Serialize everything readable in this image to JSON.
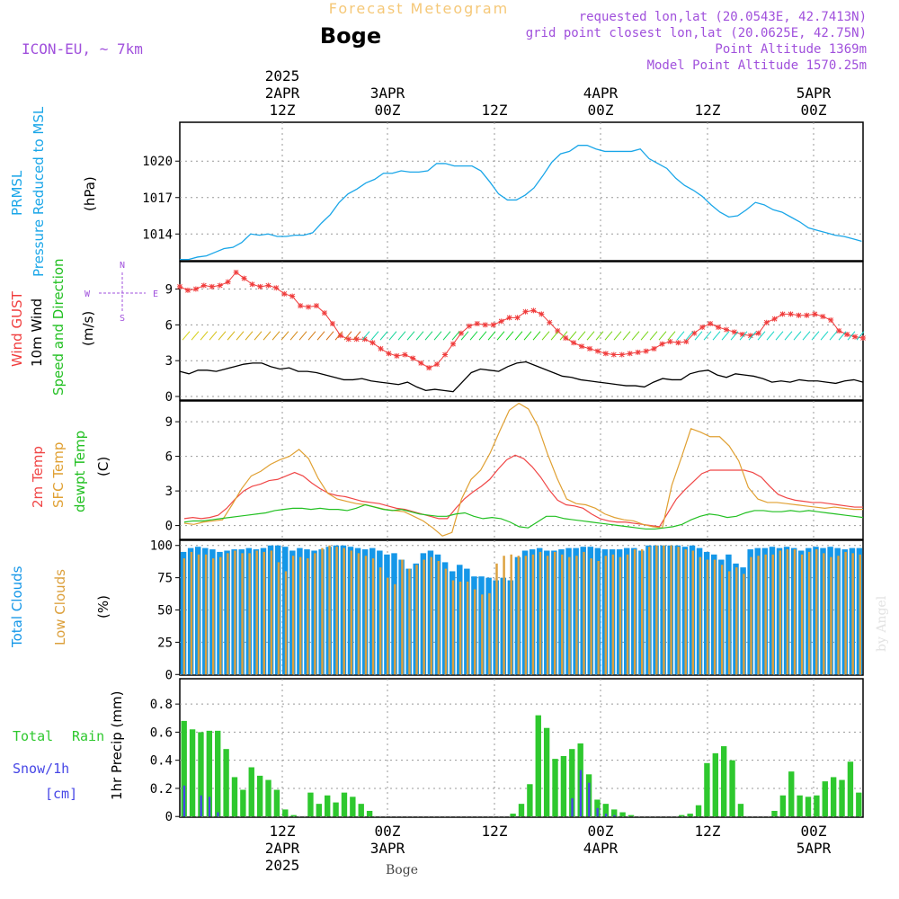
{
  "header": {
    "product": "Forecast Meteogram",
    "location": "Boge",
    "model": "ICON-EU, ~ 7km",
    "requested": "requested lon,lat (20.0543E, 42.7413N)",
    "gridpoint": "grid point closest lon,lat (20.0625E, 42.75N)",
    "point_alt": "Point Altitude 1369m",
    "model_alt": "Model Point Altitude 1570.25m"
  },
  "top_axis": {
    "labels": [
      {
        "lines": [
          "2025",
          "2APR",
          "12Z"
        ]
      },
      {
        "lines": [
          "3APR",
          "00Z"
        ]
      },
      {
        "lines": [
          "12Z"
        ]
      },
      {
        "lines": [
          "4APR",
          "00Z"
        ]
      },
      {
        "lines": [
          "12Z"
        ]
      },
      {
        "lines": [
          "5APR",
          "00Z"
        ]
      }
    ]
  },
  "bottom_axis": {
    "labels": [
      {
        "lines": [
          "12Z",
          "2APR",
          "2025"
        ]
      },
      {
        "lines": [
          "00Z",
          "3APR"
        ]
      },
      {
        "lines": [
          "12Z"
        ]
      },
      {
        "lines": [
          "00Z",
          "4APR"
        ]
      },
      {
        "lines": [
          "12Z"
        ]
      },
      {
        "lines": [
          "00Z",
          "5APR"
        ]
      }
    ],
    "footer": "Boge"
  },
  "watermark": "by Angel",
  "panel_labels": {
    "pressure": {
      "l1": "PRMSL",
      "l2": "Pressure Reduced to MSL",
      "unit": "(hPa)"
    },
    "wind": {
      "l1": "Wind GUST",
      "l2": "10m Wind",
      "l3": "Speed and Direction",
      "unit": "(m/s)",
      "compass": {
        "n": "N",
        "s": "S",
        "w": "W",
        "e": "E"
      }
    },
    "temp": {
      "l1": "2m Temp",
      "l2": "SFC Temp",
      "l3": "dewpt Temp",
      "unit": "(C)"
    },
    "clouds": {
      "l1": "Total Clouds",
      "l2": "Low Clouds",
      "unit": "(%)"
    },
    "precip": {
      "l1": "Total",
      "l1b": "Rain",
      "l2": "Snow/1h",
      "l3": "[cm]",
      "unit": "1hr Precip (mm)"
    }
  },
  "colors": {
    "pressure": "#1aa6e8",
    "gust": "#f03c3c",
    "wind": "#000000",
    "t2m": "#f04646",
    "sfc": "#e0a032",
    "dewpt": "#22c022",
    "total_cloud": "#1597e8",
    "low_cloud": "#dca03c",
    "rain": "#2ec82e",
    "snow": "#4646e6",
    "label_purple": "#a050dc",
    "label_orange": "#f5c878"
  },
  "chart_data": [
    {
      "type": "line",
      "name": "pressure",
      "x_hours": [
        0,
        1,
        2,
        3,
        4,
        5,
        6,
        7,
        8,
        9,
        10,
        11,
        12,
        13,
        14,
        15,
        16,
        17,
        18,
        19,
        20,
        21,
        22,
        23,
        24,
        25,
        26,
        27,
        28,
        29,
        30,
        31,
        32,
        33,
        34,
        35,
        36,
        37,
        38,
        39,
        40,
        41,
        42,
        43,
        44,
        45,
        46,
        47,
        48,
        49,
        50,
        51,
        52,
        53,
        54,
        55,
        56,
        57,
        58,
        59,
        60,
        61,
        62,
        63,
        64,
        65,
        66,
        67,
        68,
        69,
        70,
        71,
        72,
        73,
        74,
        75,
        76,
        77
      ],
      "y_ticks": [
        1014,
        1017,
        1020
      ],
      "ylim": [
        1011.8,
        1023.2
      ],
      "series": [
        {
          "values": [
            1011.9,
            1011.9,
            1012.1,
            1012.2,
            1012.5,
            1012.8,
            1012.9,
            1013.3,
            1014.0,
            1013.9,
            1014.0,
            1013.8,
            1013.8,
            1013.9,
            1013.9,
            1014.1,
            1014.9,
            1015.6,
            1016.6,
            1017.3,
            1017.7,
            1018.2,
            1018.5,
            1019.0,
            1019.0,
            1019.2,
            1019.1,
            1019.1,
            1019.2,
            1019.8,
            1019.8,
            1019.6,
            1019.6,
            1019.6,
            1019.2,
            1018.3,
            1017.3,
            1016.8,
            1016.8,
            1017.2,
            1017.8,
            1018.8,
            1019.9,
            1020.6,
            1020.8,
            1021.3,
            1021.3,
            1021.0,
            1020.8,
            1020.8,
            1020.8,
            1020.8,
            1021.0,
            1020.2,
            1019.8,
            1019.4,
            1018.6,
            1018.0,
            1017.6,
            1017.1,
            1016.4,
            1015.8,
            1015.4,
            1015.5,
            1016.0,
            1016.6,
            1016.4,
            1016.0,
            1015.8,
            1015.4,
            1015.0,
            1014.5,
            1014.3,
            1014.1,
            1013.9,
            1013.8,
            1013.6,
            1013.4
          ]
        }
      ]
    },
    {
      "type": "line",
      "name": "wind",
      "y_ticks": [
        0,
        3,
        6,
        9
      ],
      "ylim": [
        -0.3,
        11.3
      ],
      "series": [
        {
          "name": "Wind GUST",
          "values": [
            9.2,
            8.9,
            9.0,
            9.3,
            9.2,
            9.3,
            9.6,
            10.4,
            9.9,
            9.4,
            9.2,
            9.3,
            9.1,
            8.6,
            8.4,
            7.6,
            7.5,
            7.6,
            7.0,
            6.1,
            5.1,
            4.8,
            4.8,
            4.8,
            4.5,
            4.0,
            3.6,
            3.4,
            3.5,
            3.2,
            2.8,
            2.4,
            2.7,
            3.5,
            4.4,
            5.3,
            5.9,
            6.1,
            6.0,
            6.0,
            6.3,
            6.6,
            6.6,
            7.1,
            7.2,
            6.9,
            6.2,
            5.5,
            4.9,
            4.5,
            4.2,
            4.0,
            3.8,
            3.6,
            3.5,
            3.5,
            3.6,
            3.7,
            3.8,
            4.0,
            4.4,
            4.6,
            4.5,
            4.6,
            5.3,
            5.8,
            6.1,
            5.8,
            5.6,
            5.4,
            5.2,
            5.1,
            5.3,
            6.2,
            6.5,
            6.9,
            6.9,
            6.8,
            6.8,
            6.9,
            6.7,
            6.4,
            5.5,
            5.2,
            5.0,
            4.9
          ]
        },
        {
          "name": "10m Wind",
          "values": [
            2.1,
            1.9,
            2.2,
            2.2,
            2.1,
            2.3,
            2.5,
            2.7,
            2.8,
            2.8,
            2.5,
            2.3,
            2.4,
            2.1,
            2.1,
            2.0,
            1.8,
            1.6,
            1.4,
            1.4,
            1.5,
            1.3,
            1.2,
            1.1,
            1.0,
            1.2,
            0.8,
            0.5,
            0.6,
            0.5,
            0.4,
            1.2,
            2.0,
            2.3,
            2.2,
            2.1,
            2.5,
            2.8,
            2.9,
            2.6,
            2.3,
            2.0,
            1.7,
            1.6,
            1.4,
            1.3,
            1.2,
            1.1,
            1.0,
            0.9,
            0.9,
            0.8,
            1.2,
            1.5,
            1.4,
            1.4,
            1.9,
            2.1,
            2.2,
            1.8,
            1.6,
            1.9,
            1.8,
            1.7,
            1.5,
            1.2,
            1.3,
            1.2,
            1.4,
            1.3,
            1.3,
            1.2,
            1.1,
            1.3,
            1.4,
            1.2
          ]
        }
      ]
    },
    {
      "type": "line",
      "name": "temperature",
      "y_ticks": [
        0,
        3,
        6,
        9
      ],
      "ylim": [
        -1.2,
        10.8
      ],
      "series": [
        {
          "name": "2m Temp",
          "values": [
            0.6,
            0.7,
            0.6,
            0.7,
            0.9,
            1.5,
            2.3,
            3.0,
            3.4,
            3.6,
            3.9,
            4.0,
            4.3,
            4.6,
            4.3,
            3.7,
            3.2,
            2.8,
            2.6,
            2.5,
            2.3,
            2.1,
            2.0,
            1.9,
            1.7,
            1.5,
            1.4,
            1.2,
            1.0,
            0.8,
            0.6,
            0.6,
            1.5,
            2.3,
            2.9,
            3.4,
            4.0,
            4.9,
            5.7,
            6.1,
            5.8,
            5.1,
            4.2,
            3.1,
            2.2,
            1.8,
            1.7,
            1.5,
            1.0,
            0.6,
            0.4,
            0.3,
            0.3,
            0.2,
            0.1,
            0.0,
            -0.1,
            1.1,
            2.3,
            3.1,
            3.8,
            4.5,
            4.8,
            4.8,
            4.8,
            4.8,
            4.8,
            4.6,
            4.2,
            3.4,
            2.7,
            2.4,
            2.2,
            2.1,
            2.0,
            2.0,
            1.9,
            1.8,
            1.7,
            1.6,
            1.6
          ]
        },
        {
          "name": "SFC Temp",
          "values": [
            0.2,
            0.1,
            0.3,
            0.4,
            0.5,
            1.8,
            3.2,
            4.3,
            4.7,
            5.3,
            5.7,
            6.0,
            6.6,
            5.8,
            4.1,
            2.8,
            2.3,
            2.1,
            1.9,
            1.8,
            1.6,
            1.4,
            1.3,
            1.2,
            0.8,
            0.4,
            -0.2,
            -0.9,
            -0.6,
            2.3,
            4.0,
            4.8,
            6.3,
            8.2,
            10.0,
            10.6,
            10.1,
            8.6,
            6.2,
            4.1,
            2.3,
            1.9,
            1.8,
            1.5,
            1.0,
            0.7,
            0.5,
            0.4,
            0.1,
            -0.1,
            -0.2,
            3.5,
            5.9,
            8.4,
            8.1,
            7.7,
            7.7,
            6.9,
            5.6,
            3.3,
            2.3,
            2.0,
            2.0,
            1.9,
            1.8,
            1.7,
            1.6,
            1.5,
            1.6,
            1.5,
            1.4,
            1.4
          ]
        },
        {
          "name": "dewpt Temp",
          "values": [
            0.3,
            0.4,
            0.4,
            0.5,
            0.6,
            0.7,
            0.8,
            0.9,
            1.0,
            1.1,
            1.3,
            1.4,
            1.5,
            1.5,
            1.4,
            1.5,
            1.4,
            1.4,
            1.3,
            1.5,
            1.8,
            1.6,
            1.4,
            1.3,
            1.4,
            1.2,
            1.0,
            0.9,
            0.8,
            0.8,
            1.0,
            1.1,
            0.8,
            0.6,
            0.7,
            0.6,
            0.3,
            -0.1,
            -0.2,
            0.3,
            0.8,
            0.8,
            0.6,
            0.5,
            0.4,
            0.3,
            0.2,
            0.1,
            0.0,
            -0.1,
            -0.2,
            -0.3,
            -0.3,
            -0.2,
            -0.1,
            0.1,
            0.5,
            0.8,
            1.0,
            0.9,
            0.7,
            0.8,
            1.1,
            1.3,
            1.3,
            1.2,
            1.2,
            1.3,
            1.2,
            1.3,
            1.2,
            1.1,
            1.0,
            0.9,
            0.8,
            0.7
          ]
        }
      ]
    },
    {
      "type": "bar",
      "name": "clouds",
      "y_ticks": [
        0,
        25,
        50,
        75,
        100
      ],
      "ylim": [
        -0.5,
        104
      ],
      "series": [
        {
          "name": "Total Clouds",
          "values": [
            95,
            98,
            99,
            98,
            97,
            95,
            96,
            97,
            97,
            98,
            97,
            98,
            100,
            100,
            99,
            96,
            98,
            97,
            96,
            97,
            99,
            100,
            100,
            99,
            98,
            97,
            98,
            96,
            93,
            94,
            89,
            82,
            86,
            94,
            96,
            93,
            87,
            80,
            85,
            82,
            76,
            76,
            75,
            73,
            75,
            73,
            91,
            96,
            97,
            98,
            96,
            96,
            97,
            98,
            98,
            99,
            99,
            98,
            97,
            97,
            97,
            98,
            98,
            96,
            100,
            100,
            100,
            100,
            100,
            99,
            100,
            98,
            95,
            93,
            89,
            93,
            86,
            83,
            97,
            98,
            98,
            99,
            98,
            99,
            98,
            96,
            98,
            99,
            98,
            99,
            98,
            97,
            98,
            98
          ]
        },
        {
          "name": "Low Clouds",
          "values": [
            90,
            95,
            93,
            93,
            90,
            91,
            94,
            96,
            94,
            94,
            96,
            95,
            96,
            87,
            80,
            92,
            91,
            90,
            94,
            98,
            100,
            99,
            98,
            96,
            94,
            92,
            90,
            83,
            75,
            70,
            89,
            82,
            85,
            89,
            91,
            88,
            82,
            73,
            72,
            72,
            66,
            62,
            63,
            86,
            92,
            93,
            92,
            92,
            93,
            95,
            92,
            95,
            93,
            91,
            92,
            95,
            90,
            88,
            92,
            93,
            91,
            93,
            97,
            97,
            99,
            100,
            100,
            100,
            99,
            97,
            96,
            91,
            89,
            89,
            85,
            80,
            83,
            78,
            91,
            92,
            93,
            93,
            96,
            97,
            97,
            93,
            95,
            97,
            94,
            91,
            92,
            95,
            94,
            93
          ]
        }
      ]
    },
    {
      "type": "bar",
      "name": "precipitation",
      "y_ticks": [
        0,
        0.2,
        0.4,
        0.6,
        0.8
      ],
      "ylim": [
        -0.005,
        0.98
      ],
      "series": [
        {
          "name": "Total Rain",
          "values": [
            0.68,
            0.62,
            0.6,
            0.61,
            0.61,
            0.48,
            0.28,
            0.19,
            0.35,
            0.29,
            0.26,
            0.19,
            0.05,
            0.01,
            0.0,
            0.17,
            0.09,
            0.15,
            0.1,
            0.17,
            0.14,
            0.09,
            0.04,
            0.0,
            0.0,
            0.0,
            0.0,
            0.0,
            0.0,
            0.0,
            0.0,
            0.0,
            0.0,
            0.0,
            0.0,
            0.0,
            0.0,
            0.0,
            0.0,
            0.02,
            0.09,
            0.23,
            0.72,
            0.63,
            0.41,
            0.43,
            0.48,
            0.52,
            0.3,
            0.12,
            0.09,
            0.05,
            0.03,
            0.01,
            0.0,
            0.0,
            0.0,
            0.0,
            0.0,
            0.01,
            0.02,
            0.08,
            0.38,
            0.45,
            0.5,
            0.4,
            0.09,
            0.0,
            0.0,
            0.0,
            0.04,
            0.15,
            0.32,
            0.15,
            0.14,
            0.15,
            0.25,
            0.28,
            0.26,
            0.39,
            0.17
          ]
        },
        {
          "name": "Snow/1h",
          "values": [
            0.22,
            0.0,
            0.15,
            0.14,
            0.03,
            0.0,
            0.0,
            0.0,
            0.0,
            0.0,
            0.0,
            0.0,
            0.0,
            0.0,
            0.0,
            0.0,
            0.0,
            0.0,
            0.0,
            0.0,
            0.0,
            0.0,
            0.0,
            0.0,
            0.0,
            0.0,
            0.0,
            0.0,
            0.0,
            0.0,
            0.0,
            0.0,
            0.0,
            0.0,
            0.0,
            0.0,
            0.0,
            0.0,
            0.0,
            0.0,
            0.0,
            0.0,
            0.0,
            0.0,
            0.0,
            0.0,
            0.13,
            0.33,
            0.24,
            0.06,
            0.02,
            0.01,
            0.0,
            0.0,
            0.0,
            0.0,
            0.0,
            0.0,
            0.0,
            0.0,
            0.0,
            0.0,
            0.0,
            0.0,
            0.0,
            0.0,
            0.0,
            0.0,
            0.0,
            0.0,
            0.0,
            0.0,
            0.0,
            0.0,
            0.0,
            0.0,
            0.0,
            0.0,
            0.0,
            0.0,
            0.0
          ]
        }
      ]
    }
  ]
}
